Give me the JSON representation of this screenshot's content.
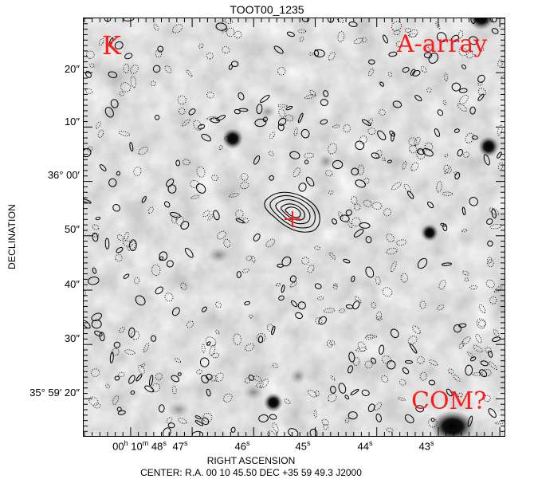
{
  "title": "TOOT00_1235",
  "axes": {
    "ylabel": "DECLINATION",
    "xlabel": "RIGHT ASCENSION",
    "center_text": "CENTER:  R.A. 00 10 45.50    DEC  +35 59 49.3   J2000",
    "ytick_labels": [
      "20″",
      "10″",
      "36° 00′",
      "50″",
      "40″",
      "30″",
      "35° 59′ 20″"
    ],
    "xtick_prefix": "00",
    "xtick_h": "h",
    "xtick_10": "10",
    "xtick_m": "m",
    "xtick_first": "48",
    "xtick_s": "s",
    "xtick_labels": [
      "47",
      "46",
      "45",
      "44",
      "43"
    ]
  },
  "annotations": {
    "top_left": "K",
    "top_right": "A-array",
    "bottom_right": "COM?"
  },
  "colors": {
    "annotation": "#ff1a1a",
    "marker": "#ff1a1a"
  },
  "marker_icon": "cross-icon"
}
